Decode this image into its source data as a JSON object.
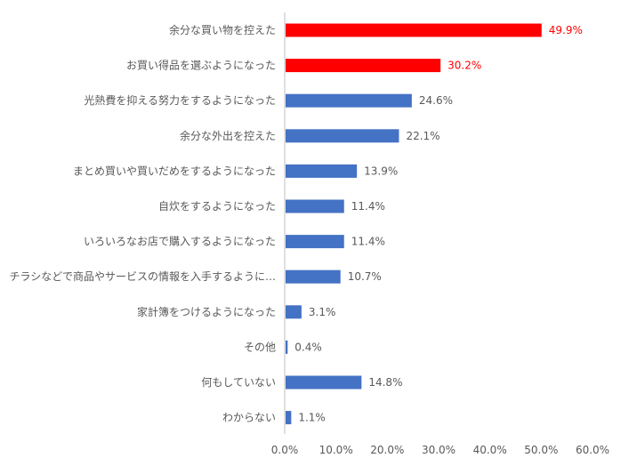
{
  "chart_data": {
    "type": "bar",
    "orientation": "horizontal",
    "categories": [
      "余分な買い物を控えた",
      "お買い得品を選ぶようになった",
      "光熱費を抑える努力をするようになった",
      "余分な外出を控えた",
      "まとめ買いや買いだめをするようになった",
      "自炊をするようになった",
      "いろいろなお店で購入するようになった",
      "チラシなどで商品やサービスの情報を入手するように…",
      "家計簿をつけるようになった",
      "その他",
      "何もしていない",
      "わからない"
    ],
    "values": [
      49.9,
      30.2,
      24.6,
      22.1,
      13.9,
      11.4,
      11.4,
      10.7,
      3.1,
      0.4,
      14.8,
      1.1
    ],
    "value_labels": [
      "49.9%",
      "30.2%",
      "24.6%",
      "22.1%",
      "13.9%",
      "11.4%",
      "11.4%",
      "10.7%",
      "3.1%",
      "0.4%",
      "14.8%",
      "1.1%"
    ],
    "highlight": [
      true,
      true,
      false,
      false,
      false,
      false,
      false,
      false,
      false,
      false,
      false,
      false
    ],
    "xlim": [
      0,
      60
    ],
    "x_ticks": [
      0,
      10,
      20,
      30,
      40,
      50,
      60
    ],
    "x_tick_labels": [
      "0.0%",
      "10.0%",
      "20.0%",
      "30.0%",
      "40.0%",
      "50.0%",
      "60.0%"
    ],
    "grid": false,
    "colors": {
      "default_bar": "#4472c4",
      "highlight_bar": "#ff0000",
      "highlight_label": "#ff0000",
      "default_label": "#595959",
      "axis": "#bfbfbf"
    }
  }
}
